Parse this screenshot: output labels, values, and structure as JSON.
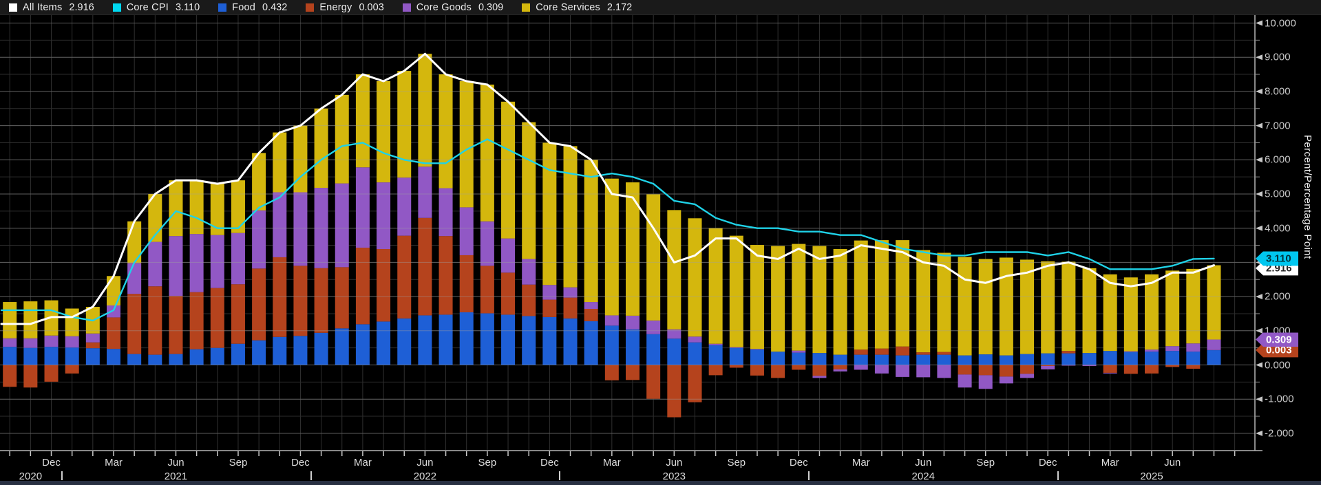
{
  "legend": {
    "items": [
      {
        "label": "All Items",
        "value": "2.916",
        "color": "#ffffff"
      },
      {
        "label": "Core CPI",
        "value": "3.110",
        "color": "#00d8f0"
      },
      {
        "label": "Food",
        "value": "0.432",
        "color": "#1e5fd6"
      },
      {
        "label": "Energy",
        "value": "0.003",
        "color": "#b5431d"
      },
      {
        "label": "Core Goods",
        "value": "0.309",
        "color": "#9158c5"
      },
      {
        "label": "Core Services",
        "value": "2.172",
        "color": "#d4b70d"
      }
    ]
  },
  "y_axis": {
    "title": "Percent/Percentage Point",
    "tick_labels": [
      "10.000",
      "9.000",
      "8.000",
      "7.000",
      "6.000",
      "5.000",
      "4.000",
      "3.000",
      "2.000",
      "1.000",
      "0.000",
      "-1.000",
      "-2.000"
    ],
    "minor_step": 0.5
  },
  "x_axis": {
    "month_ticks": [
      {
        "i": 2,
        "label": "Dec"
      },
      {
        "i": 5,
        "label": "Mar"
      },
      {
        "i": 8,
        "label": "Jun"
      },
      {
        "i": 11,
        "label": "Sep"
      },
      {
        "i": 14,
        "label": "Dec"
      },
      {
        "i": 17,
        "label": "Mar"
      },
      {
        "i": 20,
        "label": "Jun"
      },
      {
        "i": 23,
        "label": "Sep"
      },
      {
        "i": 26,
        "label": "Dec"
      },
      {
        "i": 29,
        "label": "Mar"
      },
      {
        "i": 32,
        "label": "Jun"
      },
      {
        "i": 35,
        "label": "Sep"
      },
      {
        "i": 38,
        "label": "Dec"
      },
      {
        "i": 41,
        "label": "Mar"
      },
      {
        "i": 44,
        "label": "Jun"
      },
      {
        "i": 47,
        "label": "Sep"
      },
      {
        "i": 50,
        "label": "Dec"
      },
      {
        "i": 53,
        "label": "Mar"
      },
      {
        "i": 56,
        "label": "Jun"
      }
    ],
    "year_labels": [
      {
        "i": 1,
        "label": "2020"
      },
      {
        "i": 8,
        "label": "2021"
      },
      {
        "i": 20,
        "label": "2022"
      },
      {
        "i": 32,
        "label": "2023"
      },
      {
        "i": 44,
        "label": "2024"
      },
      {
        "i": 55,
        "label": "2025"
      }
    ],
    "year_divider_positions": [
      2.5,
      14.5,
      26.5,
      38.5,
      50.5
    ]
  },
  "value_badges": [
    {
      "text": "3.110",
      "bg": "#00c7f0",
      "fg": "#00333d"
    },
    {
      "text": "2.916",
      "bg": "#ffffff",
      "fg": "#222222"
    },
    {
      "text": "0.309",
      "bg": "#9158c5",
      "fg": "#ffffff"
    },
    {
      "text": "0.003",
      "bg": "#b5431d",
      "fg": "#ffffff"
    }
  ],
  "chart_data": {
    "type": "bar",
    "stacked": true,
    "legend_position": "top",
    "ylabel": "Percent/Percentage Point",
    "ylim": [
      -2.5,
      10.2
    ],
    "grid": "horizontal every 0.5 (minor) and 1.0 (major), vertical monthly",
    "categories": [
      "Oct 2020",
      "Nov 2020",
      "Dec 2020",
      "Jan 2021",
      "Feb 2021",
      "Mar 2021",
      "Apr 2021",
      "May 2021",
      "Jun 2021",
      "Jul 2021",
      "Aug 2021",
      "Sep 2021",
      "Oct 2021",
      "Nov 2021",
      "Dec 2021",
      "Jan 2022",
      "Feb 2022",
      "Mar 2022",
      "Apr 2022",
      "May 2022",
      "Jun 2022",
      "Jul 2022",
      "Aug 2022",
      "Sep 2022",
      "Oct 2022",
      "Nov 2022",
      "Dec 2022",
      "Jan 2023",
      "Feb 2023",
      "Mar 2023",
      "Apr 2023",
      "May 2023",
      "Jun 2023",
      "Jul 2023",
      "Aug 2023",
      "Sep 2023",
      "Oct 2023",
      "Nov 2023",
      "Dec 2023",
      "Jan 2024",
      "Feb 2024",
      "Mar 2024",
      "Apr 2024",
      "May 2024",
      "Jun 2024",
      "Jul 2024",
      "Aug 2024",
      "Sep 2024",
      "Oct 2024",
      "Nov 2024",
      "Dec 2024",
      "Jan 2025",
      "Feb 2025",
      "Mar 2025",
      "Apr 2025",
      "May 2025",
      "Jun 2025",
      "Jul 2025",
      "Aug 2025"
    ],
    "series": [
      {
        "name": "Food",
        "color": "#1e5fd6",
        "values": [
          0.53,
          0.5,
          0.53,
          0.51,
          0.49,
          0.47,
          0.32,
          0.3,
          0.32,
          0.46,
          0.5,
          0.62,
          0.72,
          0.82,
          0.85,
          0.94,
          1.07,
          1.19,
          1.27,
          1.36,
          1.45,
          1.47,
          1.54,
          1.51,
          1.47,
          1.43,
          1.4,
          1.36,
          1.28,
          1.15,
          1.04,
          0.9,
          0.77,
          0.66,
          0.58,
          0.5,
          0.45,
          0.39,
          0.36,
          0.35,
          0.3,
          0.3,
          0.3,
          0.28,
          0.3,
          0.3,
          0.28,
          0.31,
          0.28,
          0.32,
          0.34,
          0.34,
          0.35,
          0.41,
          0.38,
          0.39,
          0.41,
          0.39,
          0.432
        ]
      },
      {
        "name": "Energy",
        "color": "#b5431d",
        "values": [
          -0.64,
          -0.66,
          -0.49,
          -0.25,
          0.17,
          0.92,
          1.76,
          2.0,
          1.7,
          1.67,
          1.75,
          1.74,
          2.1,
          2.33,
          2.05,
          1.89,
          1.79,
          2.24,
          2.12,
          2.42,
          2.85,
          2.3,
          1.67,
          1.39,
          1.23,
          0.92,
          0.51,
          0.61,
          0.36,
          -0.45,
          -0.44,
          -0.99,
          -1.53,
          -1.09,
          -0.3,
          -0.08,
          -0.31,
          -0.38,
          -0.14,
          -0.32,
          -0.13,
          0.15,
          0.18,
          0.26,
          0.07,
          0.08,
          -0.28,
          -0.3,
          -0.34,
          -0.26,
          -0.03,
          0.07,
          -0.01,
          -0.23,
          -0.26,
          -0.25,
          -0.06,
          -0.11,
          0.003
        ]
      },
      {
        "name": "Core Goods",
        "color": "#9158c5",
        "values": [
          0.25,
          0.28,
          0.33,
          0.33,
          0.26,
          0.35,
          0.9,
          1.3,
          1.75,
          1.7,
          1.55,
          1.5,
          1.7,
          1.9,
          2.15,
          2.35,
          2.45,
          2.35,
          1.95,
          1.7,
          1.5,
          1.4,
          1.4,
          1.3,
          1.0,
          0.75,
          0.43,
          0.3,
          0.2,
          0.3,
          0.4,
          0.4,
          0.27,
          0.17,
          0.04,
          0.02,
          0.02,
          0.0,
          0.06,
          -0.06,
          -0.06,
          -0.14,
          -0.25,
          -0.35,
          -0.36,
          -0.38,
          -0.38,
          -0.4,
          -0.2,
          -0.12,
          -0.1,
          -0.02,
          -0.02,
          -0.02,
          0.02,
          0.06,
          0.14,
          0.24,
          0.309
        ]
      },
      {
        "name": "Core Services",
        "color": "#d4b70d",
        "values": [
          1.06,
          1.08,
          1.03,
          0.81,
          0.78,
          0.86,
          1.22,
          1.4,
          1.63,
          1.57,
          1.5,
          1.54,
          1.68,
          1.75,
          1.95,
          2.32,
          2.59,
          2.72,
          2.96,
          3.12,
          3.3,
          3.33,
          3.69,
          4.0,
          4.0,
          4.0,
          4.16,
          4.13,
          4.16,
          4.0,
          3.9,
          3.69,
          3.49,
          3.46,
          3.38,
          3.26,
          3.04,
          3.09,
          3.12,
          3.13,
          3.09,
          3.19,
          3.17,
          3.11,
          2.99,
          2.9,
          2.88,
          2.79,
          2.86,
          2.76,
          2.69,
          2.61,
          2.48,
          2.24,
          2.16,
          2.2,
          2.21,
          2.18,
          2.172
        ]
      }
    ],
    "lines": [
      {
        "name": "All Items",
        "color": "#ffffff",
        "values": [
          1.2,
          1.2,
          1.4,
          1.4,
          1.7,
          2.6,
          4.2,
          5.0,
          5.4,
          5.4,
          5.3,
          5.4,
          6.2,
          6.8,
          7.0,
          7.5,
          7.9,
          8.5,
          8.3,
          8.6,
          9.1,
          8.5,
          8.3,
          8.2,
          7.7,
          7.1,
          6.5,
          6.4,
          6.0,
          5.0,
          4.9,
          4.0,
          3.0,
          3.2,
          3.7,
          3.7,
          3.2,
          3.1,
          3.4,
          3.1,
          3.2,
          3.5,
          3.4,
          3.3,
          3.0,
          2.9,
          2.5,
          2.4,
          2.6,
          2.7,
          2.9,
          3.0,
          2.8,
          2.4,
          2.3,
          2.4,
          2.7,
          2.7,
          2.916
        ]
      },
      {
        "name": "Core CPI",
        "color": "#1fd2e8",
        "values": [
          1.6,
          1.6,
          1.6,
          1.4,
          1.3,
          1.6,
          3.0,
          3.8,
          4.5,
          4.3,
          4.0,
          4.0,
          4.6,
          4.9,
          5.5,
          6.0,
          6.4,
          6.5,
          6.2,
          6.0,
          5.9,
          5.9,
          6.3,
          6.6,
          6.3,
          6.0,
          5.7,
          5.6,
          5.5,
          5.6,
          5.5,
          5.3,
          4.8,
          4.7,
          4.3,
          4.1,
          4.0,
          4.0,
          3.9,
          3.9,
          3.8,
          3.8,
          3.6,
          3.4,
          3.3,
          3.2,
          3.2,
          3.3,
          3.3,
          3.3,
          3.2,
          3.3,
          3.1,
          2.8,
          2.8,
          2.8,
          2.9,
          3.1,
          3.11
        ]
      }
    ]
  }
}
